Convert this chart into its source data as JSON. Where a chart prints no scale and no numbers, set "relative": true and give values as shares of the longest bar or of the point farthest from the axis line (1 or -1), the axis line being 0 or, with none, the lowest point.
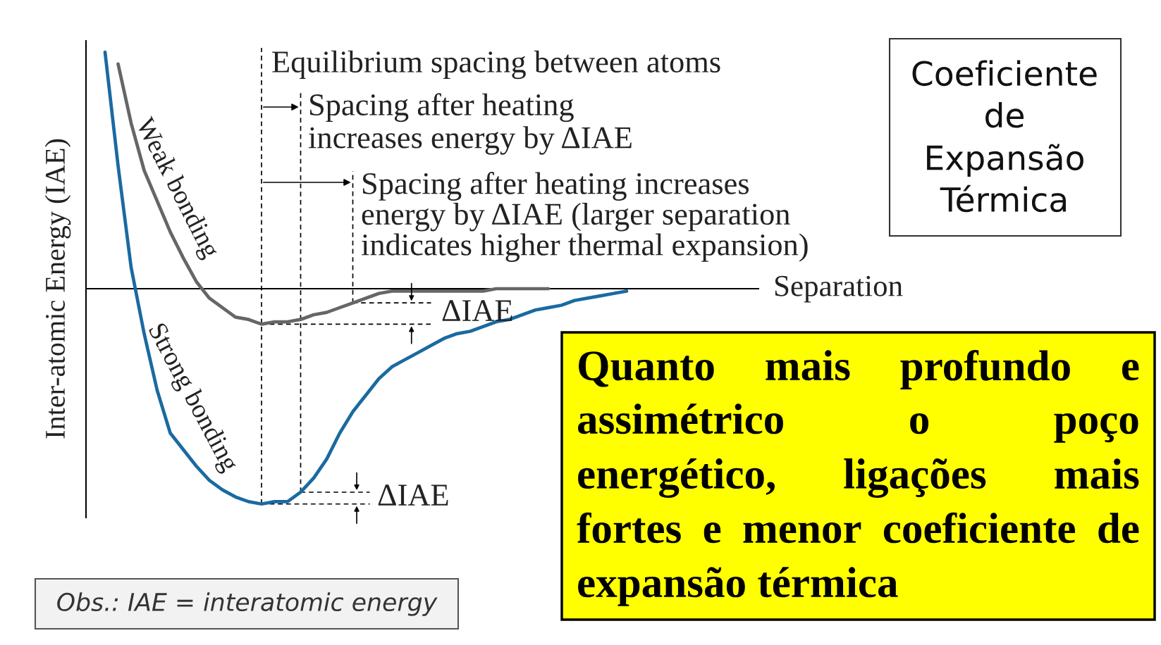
{
  "chart_data": {
    "type": "line",
    "relative": true,
    "ylabel": "Inter-atomic Energy (IAE)",
    "categories": [
      null,
      null,
      null,
      null,
      null,
      null,
      null,
      null,
      null,
      null,
      null,
      null,
      null,
      null,
      null,
      null,
      null,
      null,
      null,
      null,
      null,
      null,
      null,
      null,
      null,
      null,
      null,
      null,
      null,
      null,
      null,
      null,
      null,
      null,
      null,
      null,
      null,
      null,
      null,
      null,
      null
    ],
    "series": [
      {
        "name": "Weak bonding",
        "color": "#666666",
        "values": [
          null,
          0.95,
          0.7,
          0.5,
          0.37,
          0.24,
          0.13,
          0.03,
          -0.04,
          -0.08,
          -0.12,
          -0.13,
          -0.15,
          -0.14,
          -0.14,
          -0.13,
          -0.11,
          -0.1,
          -0.08,
          -0.06,
          -0.04,
          -0.02,
          -0.01,
          -0.01,
          -0.01,
          -0.01,
          -0.01,
          -0.01,
          -0.01,
          -0.01,
          0,
          0,
          0,
          0,
          0,
          null,
          null,
          null,
          null,
          null,
          null
        ]
      },
      {
        "name": "Strong bonding",
        "color": "#1a6aa0",
        "values": [
          1.0,
          0.52,
          0.09,
          -0.19,
          -0.43,
          -0.61,
          -0.68,
          -0.75,
          -0.81,
          -0.85,
          -0.88,
          -0.9,
          -0.91,
          -0.9,
          -0.9,
          -0.86,
          -0.8,
          -0.72,
          -0.61,
          -0.52,
          -0.45,
          -0.38,
          -0.33,
          -0.3,
          -0.27,
          -0.24,
          -0.21,
          -0.19,
          -0.18,
          -0.16,
          -0.14,
          -0.13,
          -0.11,
          -0.09,
          -0.08,
          -0.07,
          -0.05,
          -0.04,
          -0.03,
          -0.02,
          -0.01
        ]
      }
    ],
    "annotations": [
      "Equilibrium spacing between atoms",
      "Spacing after heating\nincreases energy by ΔIAE",
      "Spacing after heating increases\nenergy by ΔIAE (larger separation\nindicates higher thermal expansion)",
      "Separation",
      "ΔIAE",
      "ΔIAE",
      "Coeficiente\nde\nExpansão\nTérmica",
      "Quanto mais profundo e\nassimétrico o poço\nenergético, ligações mais\nfortes e menor coeficiente de\nexpansão térmica",
      "Obs.: IAE = interatomic energy"
    ]
  }
}
